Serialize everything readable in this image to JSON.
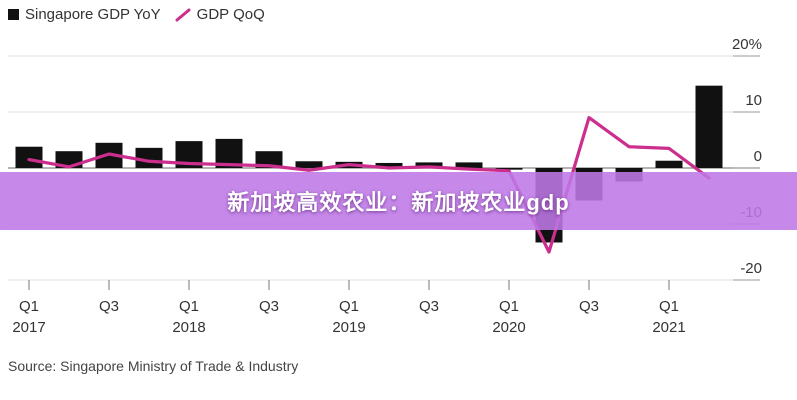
{
  "chart_data": {
    "type": "bar",
    "legend": [
      "Singapore GDP YoY",
      "GDP QoQ"
    ],
    "legend_position": "top-left",
    "x": [
      "2017Q1",
      "2017Q2",
      "2017Q3",
      "2017Q4",
      "2018Q1",
      "2018Q2",
      "2018Q3",
      "2018Q4",
      "2019Q1",
      "2019Q2",
      "2019Q3",
      "2019Q4",
      "2020Q1",
      "2020Q2",
      "2020Q3",
      "2020Q4",
      "2021Q1",
      "2021Q2"
    ],
    "x_tick_labels": [
      {
        "quarter": "Q1",
        "year": "2017"
      },
      {
        "quarter": "Q3",
        "year": ""
      },
      {
        "quarter": "Q1",
        "year": "2018"
      },
      {
        "quarter": "Q3",
        "year": ""
      },
      {
        "quarter": "Q1",
        "year": "2019"
      },
      {
        "quarter": "Q3",
        "year": ""
      },
      {
        "quarter": "Q1",
        "year": "2020"
      },
      {
        "quarter": "Q3",
        "year": ""
      },
      {
        "quarter": "Q1",
        "year": "2021"
      }
    ],
    "series": [
      {
        "name": "Singapore GDP YoY",
        "type": "bar",
        "color": "#111111",
        "values": [
          3.8,
          3.0,
          4.5,
          3.6,
          4.8,
          5.2,
          3.0,
          1.2,
          1.1,
          0.9,
          1.0,
          1.0,
          -0.3,
          -13.3,
          -5.8,
          -2.4,
          1.3,
          14.7
        ]
      },
      {
        "name": "GDP QoQ",
        "type": "line",
        "color": "#cc2e8e",
        "values": [
          1.5,
          0.2,
          2.5,
          1.2,
          0.8,
          0.6,
          0.4,
          -0.4,
          0.6,
          0.0,
          0.2,
          -0.2,
          -0.5,
          -15.0,
          9.0,
          3.8,
          3.5,
          -1.8
        ]
      }
    ],
    "ylim": [
      -23,
      23
    ],
    "yticks": [
      {
        "value": 20,
        "label": "20%"
      },
      {
        "value": 10,
        "label": "10"
      },
      {
        "value": 0,
        "label": "0"
      },
      {
        "value": -10,
        "label": "-10"
      },
      {
        "value": -20,
        "label": "-20"
      }
    ],
    "grid": "horizontal",
    "xlabel": "",
    "ylabel": ""
  },
  "overlay": {
    "banner_text": "新加坡高效农业：新加坡农业gdp",
    "banner_color": "#be78e6"
  },
  "source": "Source: Singapore Ministry of Trade & Industry"
}
